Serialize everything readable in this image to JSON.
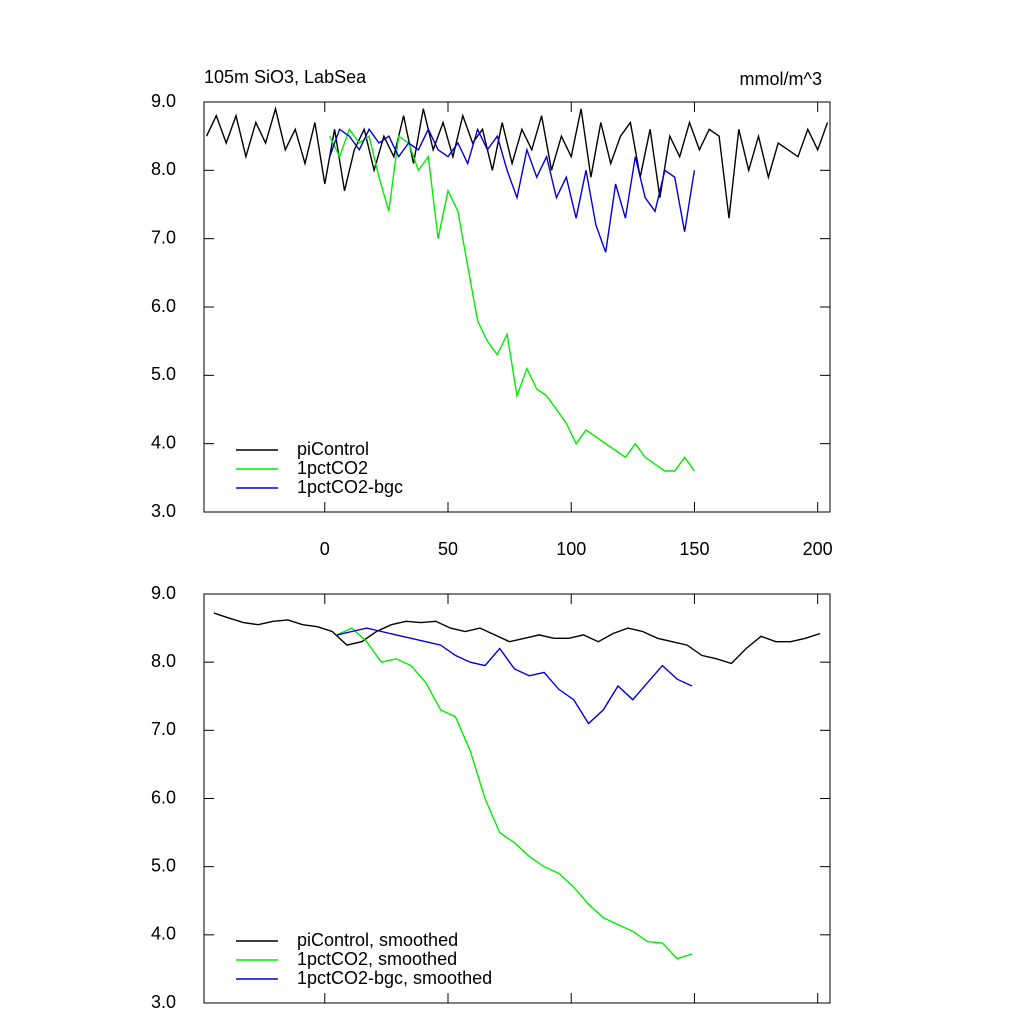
{
  "chart_data": [
    {
      "type": "line",
      "title": "105m SiO3, LabSea",
      "units": "mmol/m^3",
      "xlim": [
        -49,
        205
      ],
      "xticks": [
        0,
        50,
        100,
        150,
        200
      ],
      "ylim": [
        3,
        9
      ],
      "yticks": [
        {
          "value": 3,
          "label": "3.0"
        },
        {
          "value": 4,
          "label": "4.0"
        },
        {
          "value": 5,
          "label": "5.0"
        },
        {
          "value": 6,
          "label": "6.0"
        },
        {
          "value": 7,
          "label": "7.0"
        },
        {
          "value": 8,
          "label": "8.0"
        },
        {
          "value": 9,
          "label": "9.0"
        }
      ],
      "legend": "lower left",
      "series": [
        {
          "name": "piControl",
          "color": "#000000",
          "x": [
            -48,
            -44,
            -40,
            -36,
            -32,
            -28,
            -24,
            -20,
            -16,
            -12,
            -8,
            -4,
            0,
            4,
            8,
            12,
            16,
            20,
            24,
            28,
            32,
            36,
            40,
            44,
            48,
            52,
            56,
            60,
            64,
            68,
            72,
            76,
            80,
            84,
            88,
            92,
            96,
            100,
            104,
            108,
            112,
            116,
            120,
            124,
            128,
            132,
            136,
            140,
            144,
            148,
            152,
            156,
            160,
            164,
            168,
            172,
            176,
            180,
            184,
            188,
            192,
            196,
            200,
            204
          ],
          "values": [
            8.5,
            8.8,
            8.4,
            8.8,
            8.2,
            8.7,
            8.4,
            8.9,
            8.3,
            8.6,
            8.1,
            8.7,
            7.8,
            8.6,
            7.7,
            8.3,
            8.6,
            8.0,
            8.5,
            8.2,
            8.8,
            8.1,
            8.9,
            8.3,
            8.7,
            8.2,
            8.8,
            8.4,
            8.6,
            8.0,
            8.7,
            8.1,
            8.6,
            8.3,
            8.8,
            8.0,
            8.5,
            8.2,
            8.9,
            7.9,
            8.7,
            8.1,
            8.5,
            8.7,
            7.9,
            8.6,
            7.6,
            8.5,
            8.2,
            8.7,
            8.3,
            8.6,
            8.5,
            7.3,
            8.6,
            8.0,
            8.5,
            7.9,
            8.4,
            8.3,
            8.2,
            8.6,
            8.3,
            8.7
          ]
        },
        {
          "name": "1pctCO2",
          "color": "#00ee00",
          "x": [
            2,
            6,
            10,
            14,
            18,
            22,
            26,
            30,
            34,
            38,
            42,
            46,
            50,
            54,
            58,
            62,
            66,
            70,
            74,
            78,
            82,
            86,
            90,
            94,
            98,
            102,
            106,
            110,
            114,
            118,
            122,
            126,
            130,
            134,
            138,
            142,
            146,
            150
          ],
          "values": [
            8.5,
            8.2,
            8.6,
            8.4,
            8.5,
            7.9,
            7.4,
            8.5,
            8.4,
            8.0,
            8.2,
            7.0,
            7.7,
            7.4,
            6.6,
            5.8,
            5.5,
            5.3,
            5.6,
            4.7,
            5.1,
            4.8,
            4.7,
            4.5,
            4.3,
            4.0,
            4.2,
            4.1,
            4.0,
            3.9,
            3.8,
            4.0,
            3.8,
            3.7,
            3.6,
            3.6,
            3.8,
            3.6
          ]
        },
        {
          "name": "1pctCO2-bgc",
          "color": "#0000dd",
          "x": [
            2,
            6,
            10,
            14,
            18,
            22,
            26,
            30,
            34,
            38,
            42,
            46,
            50,
            54,
            58,
            62,
            66,
            70,
            74,
            78,
            82,
            86,
            90,
            94,
            98,
            102,
            106,
            110,
            114,
            118,
            122,
            126,
            130,
            134,
            138,
            142,
            146,
            150
          ],
          "values": [
            8.2,
            8.6,
            8.5,
            8.3,
            8.6,
            8.4,
            8.5,
            8.2,
            8.4,
            8.3,
            8.6,
            8.3,
            8.2,
            8.4,
            8.1,
            8.6,
            8.3,
            8.5,
            8.0,
            7.6,
            8.3,
            7.9,
            8.2,
            7.6,
            7.9,
            7.3,
            8.0,
            7.2,
            6.8,
            7.8,
            7.3,
            8.2,
            7.6,
            7.4,
            8.0,
            7.9,
            7.1,
            8.0
          ]
        }
      ]
    },
    {
      "type": "line",
      "xlim": [
        -49,
        205
      ],
      "xticks": [
        0,
        50,
        100,
        150,
        200
      ],
      "xticklabels": false,
      "ylim": [
        3,
        9
      ],
      "yticks": [
        {
          "value": 3,
          "label": "3.0"
        },
        {
          "value": 4,
          "label": "4.0"
        },
        {
          "value": 5,
          "label": "5.0"
        },
        {
          "value": 6,
          "label": "6.0"
        },
        {
          "value": 7,
          "label": "7.0"
        },
        {
          "value": 8,
          "label": "8.0"
        },
        {
          "value": 9,
          "label": "9.0"
        }
      ],
      "legend": "lower left",
      "series": [
        {
          "name": "piControl, smoothed",
          "color": "#000000",
          "x": [
            -45,
            -39,
            -33,
            -27,
            -21,
            -15,
            -9,
            -3,
            3,
            9,
            15,
            21,
            27,
            33,
            39,
            45,
            51,
            57,
            63,
            69,
            75,
            81,
            87,
            93,
            99,
            105,
            111,
            117,
            123,
            129,
            135,
            141,
            147,
            153,
            159,
            165,
            171,
            177,
            183,
            189,
            195,
            201
          ],
          "values": [
            8.72,
            8.65,
            8.58,
            8.55,
            8.6,
            8.62,
            8.55,
            8.52,
            8.45,
            8.25,
            8.3,
            8.45,
            8.55,
            8.6,
            8.58,
            8.6,
            8.5,
            8.45,
            8.5,
            8.4,
            8.3,
            8.35,
            8.4,
            8.35,
            8.35,
            8.4,
            8.3,
            8.42,
            8.5,
            8.45,
            8.35,
            8.3,
            8.25,
            8.1,
            8.05,
            7.98,
            8.2,
            8.38,
            8.3,
            8.3,
            8.35,
            8.42
          ]
        },
        {
          "name": "1pctCO2, smoothed",
          "color": "#00ee00",
          "x": [
            5,
            11,
            17,
            23,
            29,
            35,
            41,
            47,
            53,
            59,
            65,
            71,
            77,
            83,
            89,
            95,
            101,
            107,
            113,
            119,
            125,
            131,
            137,
            143,
            149
          ],
          "values": [
            8.4,
            8.5,
            8.3,
            8.0,
            8.05,
            7.95,
            7.7,
            7.3,
            7.2,
            6.7,
            6.0,
            5.5,
            5.35,
            5.15,
            5.0,
            4.9,
            4.7,
            4.45,
            4.25,
            4.15,
            4.05,
            3.9,
            3.88,
            3.65,
            3.72
          ]
        },
        {
          "name": "1pctCO2-bgc, smoothed",
          "color": "#0000dd",
          "x": [
            5,
            11,
            17,
            23,
            29,
            35,
            41,
            47,
            53,
            59,
            65,
            71,
            77,
            83,
            89,
            95,
            101,
            107,
            113,
            119,
            125,
            131,
            137,
            143,
            149
          ],
          "values": [
            8.4,
            8.45,
            8.5,
            8.45,
            8.4,
            8.35,
            8.3,
            8.25,
            8.1,
            8.0,
            7.95,
            8.2,
            7.9,
            7.8,
            7.85,
            7.6,
            7.45,
            7.1,
            7.3,
            7.65,
            7.45,
            7.7,
            7.95,
            7.75,
            7.65
          ]
        }
      ]
    }
  ]
}
